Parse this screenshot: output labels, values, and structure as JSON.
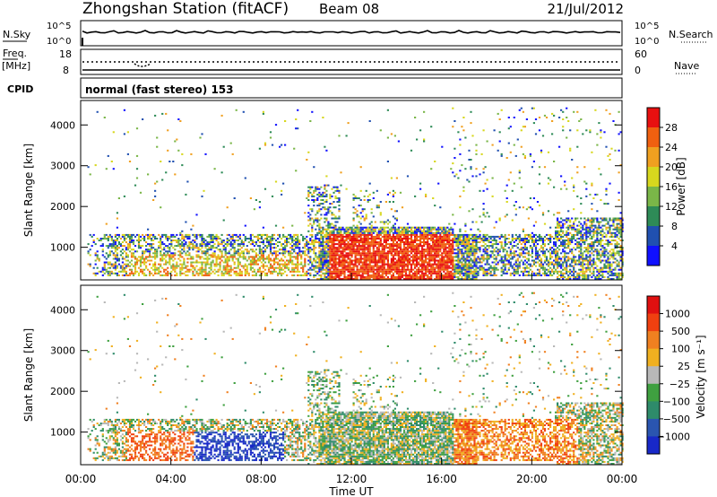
{
  "header": {
    "station": "Zhongshan Station (fitACF)",
    "beam": "Beam 08",
    "date": "21/Jul/2012"
  },
  "nsky_panel": {
    "left_label": "N.Sky",
    "left_tick_top": "10^5",
    "left_tick_bottom": "10^0",
    "right_tick_top": "10^5",
    "right_tick_bottom": "10^0",
    "right_label": "N.Search"
  },
  "freq_panel": {
    "left_label": "Freq.",
    "left_unit": "[MHz]",
    "left_tick_top": "18",
    "left_tick_bottom": "8",
    "right_tick_top": "60",
    "right_tick_bottom": "0",
    "right_label": "Nave"
  },
  "cpid": {
    "label": "CPID",
    "mode_text": "normal (fast stereo) 153"
  },
  "chart_data": [
    {
      "type": "heatmap",
      "panel": "power",
      "ylabel": "Slant Range [km]",
      "ylim": [
        200,
        4600
      ],
      "yticks": [
        "1000",
        "2000",
        "3000",
        "4000"
      ],
      "colorbar_label": "Power [dB]",
      "colorbar_ticks": [
        "4",
        "8",
        "12",
        "16",
        "20",
        "24",
        "28"
      ],
      "colorbar_colors": [
        "#1010ff",
        "#2050b0",
        "#2e8b57",
        "#7ab648",
        "#d7d71e",
        "#f0a020",
        "#f06010",
        "#e81010"
      ],
      "xlim_hours": [
        0,
        24
      ]
    },
    {
      "type": "heatmap",
      "panel": "velocity",
      "ylabel": "Slant Range [km]",
      "ylim": [
        200,
        4600
      ],
      "yticks": [
        "1000",
        "2000",
        "3000",
        "4000"
      ],
      "colorbar_label": "Velocity [m s⁻¹]",
      "colorbar_ticks": [
        "1000",
        "500",
        "100",
        "25",
        "−25",
        "−100",
        "−500",
        "−1000"
      ],
      "colorbar_colors": [
        "#1828c8",
        "#2a55b0",
        "#2e8b6a",
        "#3fa040",
        "#b8b8b8",
        "#f0b020",
        "#f08020",
        "#f04010",
        "#e01010"
      ],
      "xlim_hours": [
        0,
        24
      ]
    }
  ],
  "x_axis": {
    "ticks": [
      "00:00",
      "04:00",
      "08:00",
      "12:00",
      "16:00",
      "20:00",
      "00:00"
    ],
    "label": "Time UT"
  }
}
